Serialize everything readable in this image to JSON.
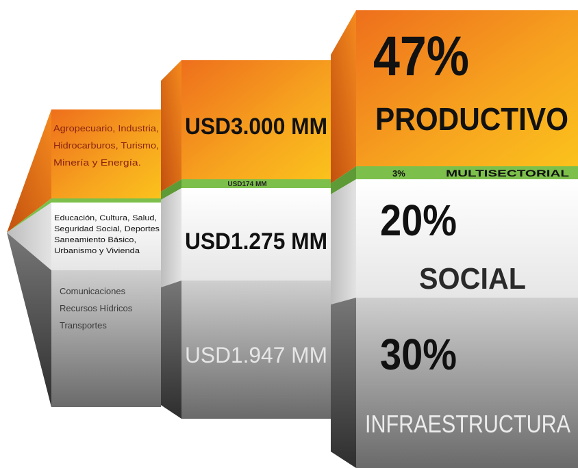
{
  "left": {
    "productive": [
      "Agropecuario, Industria,",
      "Hidrocarburos, Turismo,",
      "Minería y Energía."
    ],
    "social": [
      "Educación, Cultura, Salud,",
      "Seguridad Social, Deportes",
      "Saneamiento Básico,",
      "Urbanismo y Vivienda"
    ],
    "infrastructure": [
      "Comunicaciones",
      "Recursos Hídricos",
      "Transportes"
    ]
  },
  "middle": {
    "productive": "USD3.000 MM",
    "multisector": "USD174 MM",
    "social": "USD1.275 MM",
    "infrastructure": "USD1.947 MM"
  },
  "right": {
    "productive_percent": "47%",
    "productive_label": "PRODUCTIVO",
    "multisector_percent": "3%",
    "multisector_label": "MULTISECTORIAL",
    "social_percent": "20%",
    "social_label": "SOCIAL",
    "infrastructure_percent": "30%",
    "infrastructure_label": "INFRAESTRUCTURA"
  }
}
